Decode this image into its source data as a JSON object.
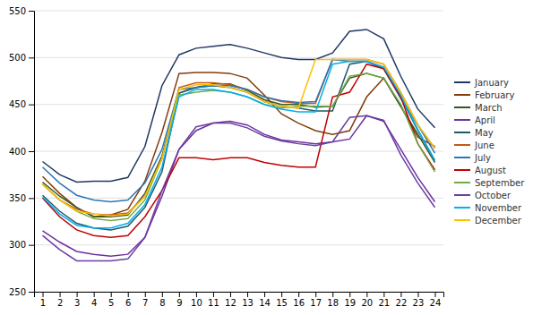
{
  "chart_data": {
    "type": "line",
    "x": [
      1,
      2,
      3,
      4,
      5,
      6,
      7,
      8,
      9,
      10,
      11,
      12,
      13,
      14,
      15,
      16,
      17,
      18,
      19,
      20,
      21,
      22,
      23,
      24
    ],
    "series": [
      {
        "name": "January",
        "color": "#1f3864",
        "values": [
          389,
          375,
          367,
          368,
          368,
          372,
          405,
          470,
          503,
          510,
          512,
          514,
          510,
          505,
          500,
          498,
          498,
          505,
          528,
          530,
          520,
          480,
          445,
          425
        ]
      },
      {
        "name": "February",
        "color": "#843c0c",
        "values": [
          373,
          355,
          340,
          330,
          332,
          338,
          368,
          420,
          483,
          484,
          484,
          483,
          478,
          460,
          440,
          430,
          422,
          418,
          422,
          458,
          478,
          448,
          415,
          405
        ]
      },
      {
        "name": "March",
        "color": "#375623",
        "values": [
          367,
          352,
          340,
          330,
          330,
          332,
          355,
          395,
          462,
          468,
          472,
          472,
          465,
          455,
          450,
          450,
          447,
          448,
          478,
          483,
          478,
          448,
          418,
          388
        ]
      },
      {
        "name": "April",
        "color": "#7030a0",
        "values": [
          315,
          303,
          293,
          290,
          288,
          290,
          308,
          352,
          402,
          422,
          430,
          432,
          428,
          418,
          412,
          410,
          408,
          410,
          413,
          438,
          432,
          402,
          372,
          346
        ]
      },
      {
        "name": "May",
        "color": "#215868",
        "values": [
          353,
          336,
          323,
          318,
          316,
          320,
          340,
          378,
          462,
          468,
          470,
          468,
          463,
          453,
          448,
          446,
          443,
          443,
          493,
          496,
          488,
          458,
          422,
          390
        ]
      },
      {
        "name": "June",
        "color": "#c55a11",
        "values": [
          365,
          348,
          338,
          333,
          332,
          334,
          352,
          392,
          468,
          473,
          473,
          471,
          466,
          458,
          453,
          451,
          451,
          498,
          498,
          498,
          493,
          463,
          428,
          403
        ]
      },
      {
        "name": "July",
        "color": "#2e75b6",
        "values": [
          383,
          366,
          353,
          348,
          346,
          348,
          366,
          402,
          466,
          468,
          470,
          470,
          466,
          458,
          454,
          452,
          453,
          498,
          496,
          496,
          488,
          456,
          428,
          398
        ]
      },
      {
        "name": "August",
        "color": "#c00000",
        "values": [
          350,
          330,
          316,
          310,
          308,
          310,
          330,
          358,
          393,
          393,
          391,
          393,
          393,
          388,
          385,
          383,
          383,
          458,
          463,
          493,
          488,
          458,
          408,
          380
        ]
      },
      {
        "name": "September",
        "color": "#70ad47",
        "values": [
          365,
          348,
          336,
          328,
          326,
          328,
          348,
          392,
          460,
          463,
          465,
          463,
          458,
          450,
          446,
          448,
          448,
          448,
          480,
          483,
          478,
          450,
          408,
          378
        ]
      },
      {
        "name": "October",
        "color": "#6b3fa0",
        "values": [
          310,
          295,
          283,
          283,
          283,
          285,
          308,
          358,
          402,
          426,
          430,
          430,
          425,
          416,
          411,
          408,
          406,
          410,
          436,
          438,
          433,
          396,
          366,
          340
        ]
      },
      {
        "name": "November",
        "color": "#00b0f0",
        "values": [
          351,
          333,
          321,
          318,
          318,
          323,
          343,
          383,
          458,
          466,
          466,
          463,
          458,
          450,
          445,
          442,
          442,
          493,
          496,
          496,
          490,
          460,
          423,
          390
        ]
      },
      {
        "name": "December",
        "color": "#ffc000",
        "values": [
          365,
          348,
          336,
          333,
          331,
          333,
          352,
          392,
          466,
          471,
          471,
          468,
          463,
          453,
          448,
          446,
          498,
          498,
          498,
          498,
          493,
          463,
          428,
          403
        ]
      }
    ],
    "xlim": [
      0.5,
      24.5
    ],
    "ylim": [
      250,
      550
    ],
    "xticks": [
      1,
      2,
      3,
      4,
      5,
      6,
      7,
      8,
      9,
      10,
      11,
      12,
      13,
      14,
      15,
      16,
      17,
      18,
      19,
      20,
      21,
      22,
      23,
      24
    ],
    "yticks": [
      250,
      300,
      350,
      400,
      450,
      500,
      550
    ],
    "grid": true,
    "legend": "right"
  }
}
